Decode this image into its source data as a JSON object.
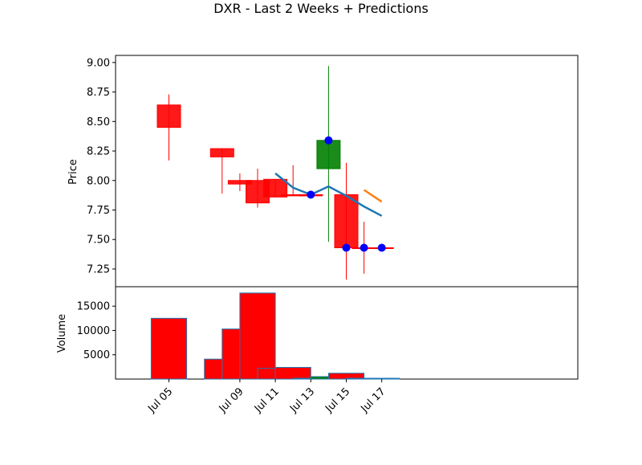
{
  "chart_data": {
    "title": "DXR - Last 2 Weeks + Predictions",
    "price_panel": {
      "type": "candlestick",
      "ylabel": "Price",
      "ylim": [
        7.1,
        9.06
      ],
      "yticks": [
        {
          "value": 7.25,
          "label": "7.25"
        },
        {
          "value": 7.5,
          "label": "7.50"
        },
        {
          "value": 7.75,
          "label": "7.75"
        },
        {
          "value": 8.0,
          "label": "8.00"
        },
        {
          "value": 8.25,
          "label": "8.25"
        },
        {
          "value": 8.5,
          "label": "8.50"
        },
        {
          "value": 8.75,
          "label": "8.75"
        },
        {
          "value": 9.0,
          "label": "9.00"
        }
      ],
      "candles": [
        {
          "date": "2025-07-05",
          "open": 8.64,
          "high": 8.73,
          "low": 8.17,
          "close": 8.45
        },
        {
          "date": "2025-07-08",
          "open": 8.27,
          "high": 8.27,
          "low": 7.89,
          "close": 8.2
        },
        {
          "date": "2025-07-09",
          "open": 8.0,
          "high": 8.06,
          "low": 7.91,
          "close": 7.97
        },
        {
          "date": "2025-07-10",
          "open": 8.0,
          "high": 8.1,
          "low": 7.77,
          "close": 7.81
        },
        {
          "date": "2025-07-11",
          "open": 8.01,
          "high": 8.01,
          "low": 7.86,
          "close": 7.86
        },
        {
          "date": "2025-07-12",
          "open": 7.88,
          "high": 8.13,
          "low": 7.87,
          "close": 7.87
        },
        {
          "date": "2025-07-13",
          "open": 7.88,
          "high": 7.89,
          "low": 7.87,
          "close": 7.87
        },
        {
          "date": "2025-07-14",
          "open": 8.1,
          "high": 8.97,
          "low": 7.48,
          "close": 8.34
        },
        {
          "date": "2025-07-15",
          "open": 7.88,
          "high": 8.15,
          "low": 7.16,
          "close": 7.43
        },
        {
          "date": "2025-07-16",
          "open": 7.43,
          "high": 7.65,
          "low": 7.21,
          "close": 7.43
        },
        {
          "date": "2025-07-17",
          "open": 7.43,
          "high": 7.43,
          "low": 7.43,
          "close": 7.43
        }
      ],
      "up_color": "#008000",
      "down_color": "#ff0000",
      "lines": [
        {
          "color": "#1f77b4",
          "points": [
            {
              "x": "2025-07-11",
              "y": 8.06
            },
            {
              "x": "2025-07-12",
              "y": 7.94
            },
            {
              "x": "2025-07-13",
              "y": 7.88
            },
            {
              "x": "2025-07-14",
              "y": 7.95
            },
            {
              "x": "2025-07-15",
              "y": 7.87
            },
            {
              "x": "2025-07-16",
              "y": 7.78
            },
            {
              "x": "2025-07-17",
              "y": 7.7
            }
          ]
        },
        {
          "color": "#ff7f0e",
          "points": [
            {
              "x": "2025-07-16",
              "y": 7.92
            },
            {
              "x": "2025-07-17",
              "y": 7.82
            }
          ]
        }
      ],
      "markers": {
        "color": "#0000ff",
        "points": [
          {
            "x": "2025-07-13",
            "y": 7.88
          },
          {
            "x": "2025-07-14",
            "y": 8.34
          },
          {
            "x": "2025-07-15",
            "y": 7.43
          },
          {
            "x": "2025-07-16",
            "y": 7.43
          },
          {
            "x": "2025-07-17",
            "y": 7.43
          }
        ]
      }
    },
    "volume_panel": {
      "type": "bar",
      "ylabel": "Volume",
      "ylim": [
        0,
        19000
      ],
      "yticks": [
        {
          "value": 5000,
          "label": "5000"
        },
        {
          "value": 10000,
          "label": "10000"
        },
        {
          "value": 15000,
          "label": "15000"
        }
      ],
      "bars": [
        {
          "date": "2025-07-05",
          "value": 12500,
          "color": "#ff0000"
        },
        {
          "date": "2025-07-08",
          "value": 4100,
          "color": "#ff0000"
        },
        {
          "date": "2025-07-09",
          "value": 10300,
          "color": "#ff0000"
        },
        {
          "date": "2025-07-10",
          "value": 17700,
          "color": "#ff0000"
        },
        {
          "date": "2025-07-11",
          "value": 2200,
          "color": "#ff0000"
        },
        {
          "date": "2025-07-12",
          "value": 2400,
          "color": "#ff0000"
        },
        {
          "date": "2025-07-13",
          "value": 100,
          "color": "#008000"
        },
        {
          "date": "2025-07-14",
          "value": 500,
          "color": "#008000"
        },
        {
          "date": "2025-07-15",
          "value": 1200,
          "color": "#ff0000"
        },
        {
          "date": "2025-07-16",
          "value": 100,
          "color": "#008000"
        },
        {
          "date": "2025-07-17",
          "value": 100,
          "color": "#008000"
        }
      ]
    },
    "xaxis": {
      "ticks": [
        {
          "date": "2025-07-05",
          "label": "Jul 05"
        },
        {
          "date": "2025-07-09",
          "label": "Jul 09"
        },
        {
          "date": "2025-07-11",
          "label": "Jul 11"
        },
        {
          "date": "2025-07-13",
          "label": "Jul 13"
        },
        {
          "date": "2025-07-15",
          "label": "Jul 15"
        },
        {
          "date": "2025-07-17",
          "label": "Jul 17"
        }
      ]
    }
  }
}
